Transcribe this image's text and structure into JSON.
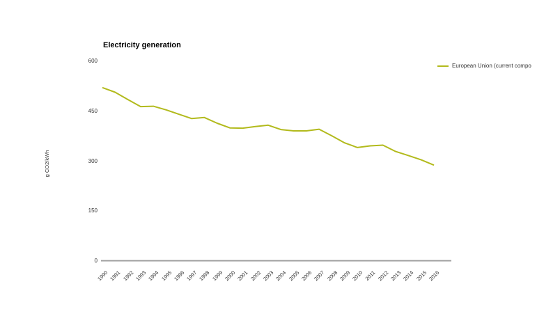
{
  "title": "Electricity generation",
  "y_axis": {
    "label": "g CO2/kWh",
    "ticks": [
      600,
      450,
      300,
      150,
      0
    ]
  },
  "legend": {
    "label": "European Union (current compo"
  },
  "colors": {
    "series": "#b2ba1c",
    "axis_line": "#9e9e9e",
    "tick_text": "#333333"
  },
  "chart_data": {
    "type": "line",
    "title": "Electricity generation",
    "xlabel": "",
    "ylabel": "g CO2/kWh",
    "ylim": [
      0,
      600
    ],
    "y_ticks": [
      0,
      150,
      300,
      450,
      600
    ],
    "grid": false,
    "legend_position": "top-right",
    "x": [
      1990,
      1991,
      1992,
      1993,
      1994,
      1995,
      1996,
      1997,
      1998,
      1999,
      2000,
      2001,
      2002,
      2003,
      2004,
      2005,
      2006,
      2007,
      2008,
      2009,
      2010,
      2011,
      2012,
      2013,
      2014,
      2015,
      2016
    ],
    "series": [
      {
        "name": "European Union (current compo",
        "color": "#b2ba1c",
        "values": [
          521,
          507,
          485,
          464,
          465,
          454,
          441,
          428,
          431,
          414,
          400,
          399,
          404,
          408,
          395,
          391,
          391,
          396,
          376,
          355,
          341,
          346,
          348,
          329,
          317,
          304,
          288
        ]
      }
    ]
  }
}
